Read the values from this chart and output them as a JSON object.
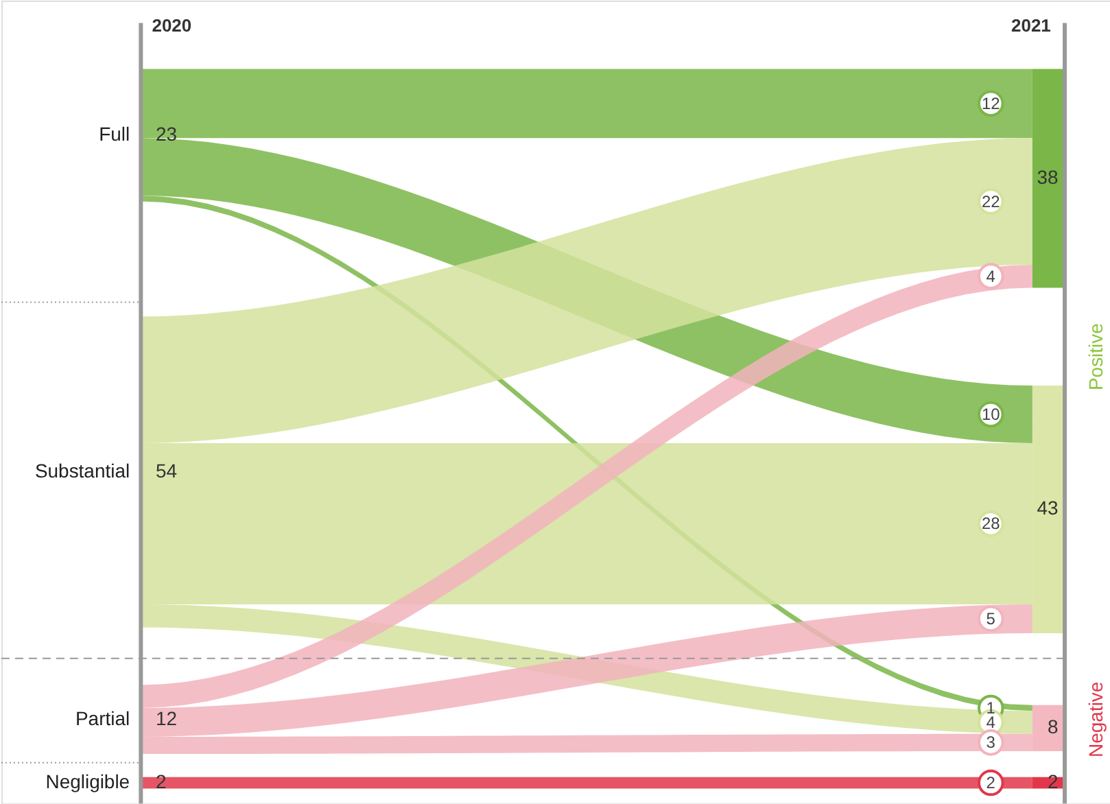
{
  "chart_data": {
    "type": "other",
    "categories": [
      "Full",
      "Substantial",
      "Partial",
      "Negligible"
    ],
    "colors": [
      "#7ab648",
      "#dce6a8",
      "#f4b8c1",
      "#e2374b"
    ],
    "values": [
      23,
      54,
      12,
      2
    ],
    "totals": [
      "38",
      "43",
      "8",
      "2"
    ],
    "series": [
      {
        "color": "#7ab648",
        "values": [
          12,
          10,
          1,
          null
        ]
      },
      {
        "color": "#d4e29c",
        "values": [
          22,
          28,
          4,
          null
        ]
      },
      {
        "color": "#f2b3bc",
        "values": [
          4,
          5,
          3,
          null
        ]
      },
      {
        "color": "#e2374b",
        "values": [
          null,
          null,
          null,
          2
        ]
      }
    ],
    "data_labels": true,
    "annotations": [
      "2020",
      "2021",
      "Positive",
      "Negative"
    ]
  }
}
